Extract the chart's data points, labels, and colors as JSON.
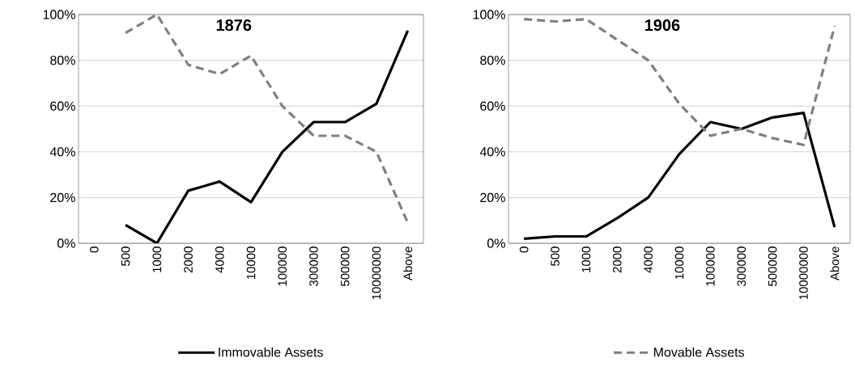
{
  "chart_data": [
    {
      "type": "line",
      "title": "1876",
      "categories": [
        "0",
        "500",
        "1000",
        "2000",
        "4000",
        "10000",
        "100000",
        "300000",
        "500000",
        "10000000",
        "Above"
      ],
      "ylim": [
        0,
        100
      ],
      "yticks": [
        {
          "value": 0,
          "label": "0%"
        },
        {
          "value": 20,
          "label": "20%"
        },
        {
          "value": 40,
          "label": "40%"
        },
        {
          "value": 60,
          "label": "60%"
        },
        {
          "value": 80,
          "label": "80%"
        },
        {
          "value": 100,
          "label": "100%"
        }
      ],
      "grid": "y",
      "legend": "bottom",
      "series": [
        {
          "name": "Immovable Assets",
          "color": "#000000",
          "line_style": "solid",
          "values": [
            null,
            8,
            0,
            23,
            27,
            18,
            40,
            53,
            53,
            61,
            93
          ]
        },
        {
          "color": "#808080",
          "line_style": "dashed",
          "values": [
            null,
            92,
            100,
            78,
            74,
            82,
            60,
            47,
            47,
            40,
            9
          ]
        }
      ]
    },
    {
      "type": "line",
      "title": "1906",
      "categories": [
        "0",
        "500",
        "1000",
        "2000",
        "4000",
        "10000",
        "100000",
        "300000",
        "500000",
        "10000000",
        "Above"
      ],
      "ylim": [
        0,
        100
      ],
      "yticks": [
        {
          "value": 0,
          "label": "0%"
        },
        {
          "value": 20,
          "label": "20%"
        },
        {
          "value": 40,
          "label": "40%"
        },
        {
          "value": 60,
          "label": "60%"
        },
        {
          "value": 80,
          "label": "80%"
        },
        {
          "value": 100,
          "label": "100%"
        }
      ],
      "grid": "y",
      "legend": "bottom",
      "series": [
        {
          "color": "#000000",
          "line_style": "solid",
          "values": [
            2,
            3,
            3,
            11,
            20,
            39,
            53,
            50,
            55,
            57,
            7
          ]
        },
        {
          "name": "Movable Assets",
          "color": "#808080",
          "line_style": "dashed",
          "values": [
            98,
            97,
            98,
            89,
            80,
            61,
            47,
            50,
            46,
            43,
            95
          ]
        }
      ]
    }
  ]
}
